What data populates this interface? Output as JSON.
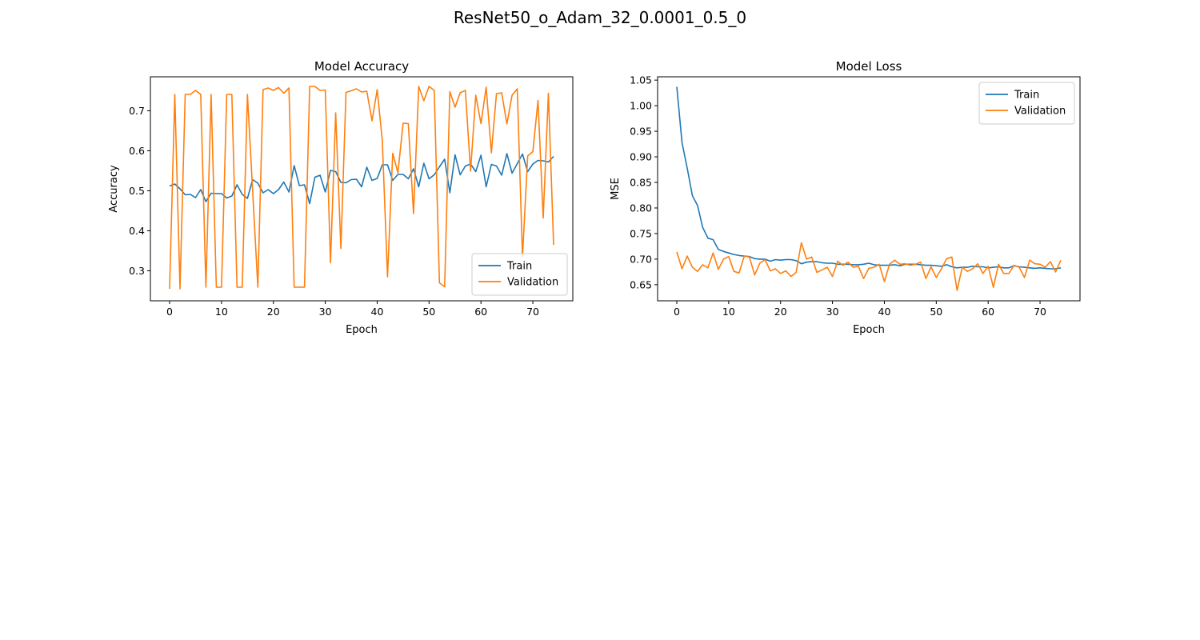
{
  "figure": {
    "title": "ResNet50_o_Adam_32_0.0001_0.5_0"
  },
  "colors": {
    "train": "#1f77b4",
    "validation": "#ff7f0e"
  },
  "chart_data": [
    {
      "type": "line",
      "title": "Model Accuracy",
      "xlabel": "Epoch",
      "ylabel": "Accuracy",
      "xlim": [
        -3.7,
        77.7
      ],
      "ylim": [
        0.225,
        0.785
      ],
      "xticks": [
        0,
        10,
        20,
        30,
        40,
        50,
        60,
        70
      ],
      "yticks": [
        0.3,
        0.4,
        0.5,
        0.6,
        0.7
      ],
      "legend_position": "lower-right",
      "grid": false,
      "series": [
        {
          "name": "Train",
          "color": "#1f77b4",
          "values": [
            0.512,
            0.517,
            0.505,
            0.49,
            0.491,
            0.483,
            0.503,
            0.473,
            0.494,
            0.493,
            0.493,
            0.482,
            0.487,
            0.515,
            0.491,
            0.481,
            0.528,
            0.519,
            0.495,
            0.503,
            0.493,
            0.503,
            0.522,
            0.497,
            0.563,
            0.513,
            0.515,
            0.468,
            0.534,
            0.539,
            0.497,
            0.551,
            0.548,
            0.521,
            0.52,
            0.528,
            0.529,
            0.51,
            0.559,
            0.526,
            0.531,
            0.565,
            0.565,
            0.526,
            0.541,
            0.541,
            0.53,
            0.555,
            0.51,
            0.569,
            0.53,
            0.54,
            0.56,
            0.579,
            0.495,
            0.59,
            0.54,
            0.562,
            0.567,
            0.548,
            0.589,
            0.51,
            0.566,
            0.562,
            0.539,
            0.593,
            0.544,
            0.568,
            0.592,
            0.548,
            0.567,
            0.576,
            0.575,
            0.572,
            0.586
          ]
        },
        {
          "name": "Validation",
          "color": "#ff7f0e",
          "values": [
            0.255,
            0.741,
            0.255,
            0.741,
            0.741,
            0.751,
            0.741,
            0.259,
            0.741,
            0.259,
            0.259,
            0.741,
            0.741,
            0.259,
            0.259,
            0.741,
            0.5,
            0.259,
            0.753,
            0.757,
            0.751,
            0.758,
            0.744,
            0.757,
            0.259,
            0.259,
            0.259,
            0.761,
            0.761,
            0.751,
            0.752,
            0.32,
            0.695,
            0.356,
            0.746,
            0.75,
            0.755,
            0.747,
            0.749,
            0.675,
            0.753,
            0.625,
            0.285,
            0.594,
            0.545,
            0.669,
            0.668,
            0.443,
            0.761,
            0.725,
            0.761,
            0.751,
            0.27,
            0.26,
            0.748,
            0.709,
            0.745,
            0.751,
            0.549,
            0.739,
            0.668,
            0.759,
            0.595,
            0.743,
            0.745,
            0.667,
            0.739,
            0.755,
            0.335,
            0.587,
            0.598,
            0.726,
            0.432,
            0.744,
            0.365
          ]
        }
      ]
    },
    {
      "type": "line",
      "title": "Model Loss",
      "xlabel": "Epoch",
      "ylabel": "MSE",
      "xlim": [
        -3.7,
        77.7
      ],
      "ylim": [
        0.6185,
        1.0565
      ],
      "xticks": [
        0,
        10,
        20,
        30,
        40,
        50,
        60,
        70
      ],
      "yticks": [
        0.65,
        0.7,
        0.75,
        0.8,
        0.85,
        0.9,
        0.95,
        1.0,
        1.05
      ],
      "legend_position": "upper-right",
      "grid": false,
      "series": [
        {
          "name": "Train",
          "color": "#1f77b4",
          "values": [
            1.037,
            0.928,
            0.878,
            0.824,
            0.805,
            0.762,
            0.741,
            0.738,
            0.719,
            0.715,
            0.712,
            0.709,
            0.707,
            0.706,
            0.705,
            0.701,
            0.7,
            0.7,
            0.696,
            0.699,
            0.698,
            0.699,
            0.699,
            0.697,
            0.691,
            0.694,
            0.695,
            0.695,
            0.693,
            0.692,
            0.692,
            0.69,
            0.69,
            0.69,
            0.689,
            0.689,
            0.69,
            0.692,
            0.689,
            0.688,
            0.688,
            0.688,
            0.689,
            0.687,
            0.69,
            0.69,
            0.69,
            0.689,
            0.688,
            0.688,
            0.687,
            0.686,
            0.689,
            0.685,
            0.683,
            0.684,
            0.684,
            0.686,
            0.685,
            0.685,
            0.683,
            0.684,
            0.685,
            0.683,
            0.683,
            0.687,
            0.685,
            0.684,
            0.683,
            0.682,
            0.683,
            0.682,
            0.681,
            0.681,
            0.683
          ]
        },
        {
          "name": "Validation",
          "color": "#ff7f0e",
          "values": [
            0.714,
            0.681,
            0.706,
            0.684,
            0.676,
            0.689,
            0.683,
            0.712,
            0.68,
            0.7,
            0.705,
            0.676,
            0.673,
            0.706,
            0.704,
            0.669,
            0.692,
            0.699,
            0.677,
            0.681,
            0.672,
            0.677,
            0.666,
            0.674,
            0.732,
            0.7,
            0.704,
            0.674,
            0.679,
            0.684,
            0.666,
            0.696,
            0.688,
            0.694,
            0.684,
            0.686,
            0.662,
            0.682,
            0.684,
            0.69,
            0.656,
            0.69,
            0.698,
            0.69,
            0.691,
            0.688,
            0.69,
            0.694,
            0.662,
            0.685,
            0.664,
            0.681,
            0.701,
            0.704,
            0.639,
            0.684,
            0.676,
            0.681,
            0.691,
            0.672,
            0.686,
            0.645,
            0.69,
            0.672,
            0.672,
            0.688,
            0.684,
            0.664,
            0.698,
            0.691,
            0.69,
            0.684,
            0.695,
            0.675,
            0.698
          ]
        }
      ]
    }
  ]
}
